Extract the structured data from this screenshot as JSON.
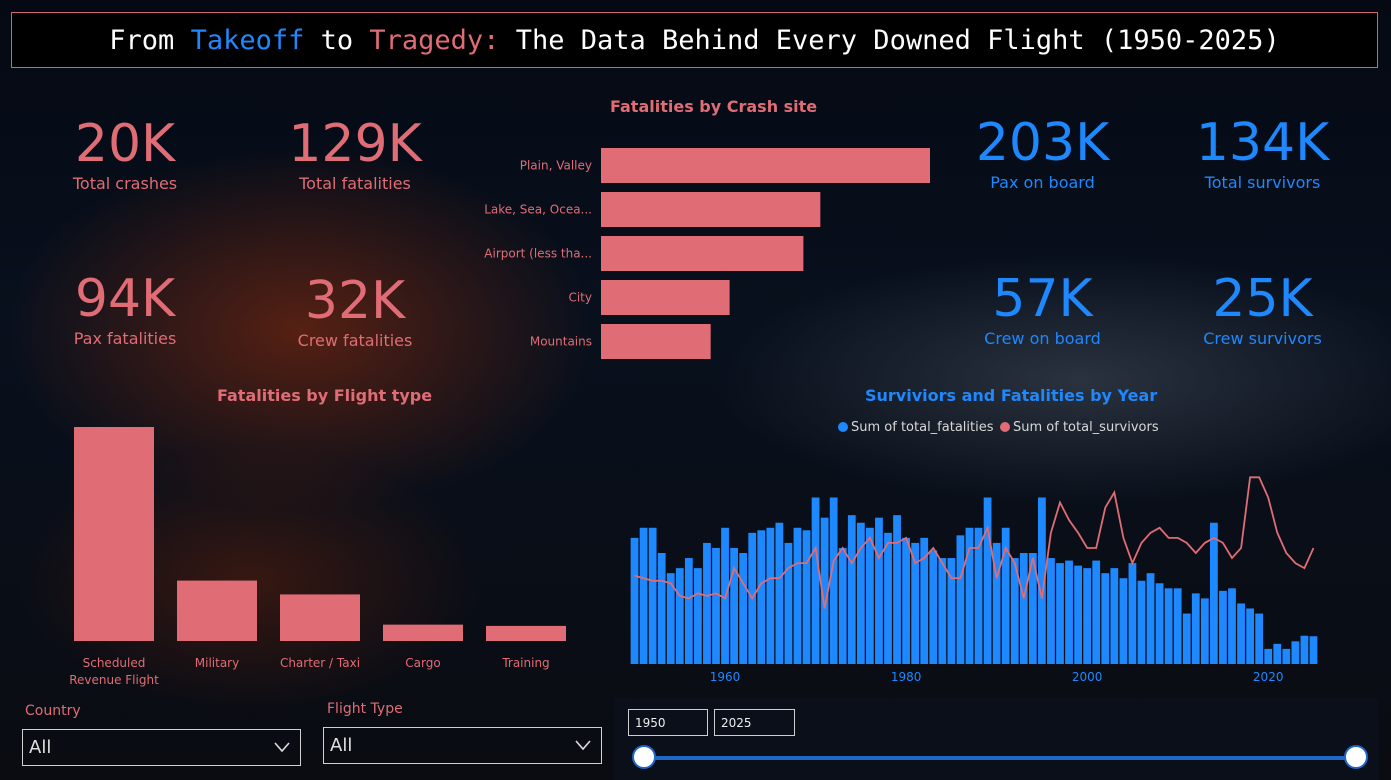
{
  "title": {
    "parts": [
      {
        "text": "From ",
        "color": "#ffffff"
      },
      {
        "text": "Takeoff",
        "color": "#1e88ff"
      },
      {
        "text": " to ",
        "color": "#ffffff"
      },
      {
        "text": "Tragedy:",
        "color": "#e06c75"
      },
      {
        "text": " The Data Behind Every Downed Flight (1950-2025)",
        "color": "#ffffff"
      }
    ]
  },
  "kpis": {
    "total_crashes": {
      "value": "20K",
      "label": "Total crashes"
    },
    "total_fatalities": {
      "value": "129K",
      "label": "Total fatalities"
    },
    "pax_fatalities": {
      "value": "94K",
      "label": "Pax fatalities"
    },
    "crew_fatalities": {
      "value": "32K",
      "label": "Crew fatalities"
    },
    "pax_on_board": {
      "value": "203K",
      "label": "Pax on board"
    },
    "total_survivors": {
      "value": "134K",
      "label": "Total survivors"
    },
    "crew_on_board": {
      "value": "57K",
      "label": "Crew on board"
    },
    "crew_survivors": {
      "value": "25K",
      "label": "Crew survivors"
    }
  },
  "colors": {
    "red": "#e06c75",
    "blue": "#1e88ff",
    "line": "#e06c75"
  },
  "chart_data": [
    {
      "type": "bar",
      "orientation": "horizontal",
      "title": "Fatalities by Crash site",
      "categories": [
        "Plain, Valley",
        "Lake, Sea, Ocea...",
        "Airport (less tha...",
        "City",
        "Mountains"
      ],
      "values": [
        33000,
        22000,
        20300,
        12900,
        11000
      ]
    },
    {
      "type": "bar",
      "title": "Fatalities by Flight type",
      "categories": [
        "Scheduled Revenue Flight",
        "Military",
        "Charter / Taxi",
        "Cargo",
        "Training"
      ],
      "category_lines": [
        [
          "Scheduled",
          "Revenue Flight"
        ],
        [
          "Military"
        ],
        [
          "Charter / Taxi"
        ],
        [
          "Cargo"
        ],
        [
          "Training"
        ]
      ],
      "values": [
        85000,
        24000,
        18500,
        6500,
        6000
      ]
    },
    {
      "type": "bar+line",
      "title": "Surviviors and Fatalities by Year",
      "legend": [
        "Sum of total_fatalities",
        "Sum of total_survivors"
      ],
      "legend_position": "top",
      "x_ticks": [
        1960,
        1980,
        2000,
        2020
      ],
      "x_range": [
        1950,
        2025
      ],
      "y_range": [
        0,
        4400
      ],
      "grid": false,
      "x": [
        1950,
        1951,
        1952,
        1953,
        1954,
        1955,
        1956,
        1957,
        1958,
        1959,
        1960,
        1961,
        1962,
        1963,
        1964,
        1965,
        1966,
        1967,
        1968,
        1969,
        1970,
        1971,
        1972,
        1973,
        1974,
        1975,
        1976,
        1977,
        1978,
        1979,
        1980,
        1981,
        1982,
        1983,
        1984,
        1985,
        1986,
        1987,
        1988,
        1989,
        1990,
        1991,
        1992,
        1993,
        1994,
        1995,
        1996,
        1997,
        1998,
        1999,
        2000,
        2001,
        2002,
        2003,
        2004,
        2005,
        2006,
        2007,
        2008,
        2009,
        2010,
        2011,
        2012,
        2013,
        2014,
        2015,
        2016,
        2017,
        2018,
        2019,
        2020,
        2021,
        2022,
        2023,
        2024,
        2025
      ],
      "series": [
        {
          "name": "Sum of total_fatalities",
          "type": "bar",
          "values": [
            2500,
            2700,
            2700,
            2200,
            1800,
            1900,
            2100,
            1900,
            2400,
            2300,
            2700,
            2300,
            2200,
            2600,
            2650,
            2700,
            2800,
            2400,
            2700,
            2650,
            3300,
            2900,
            3300,
            2300,
            2950,
            2800,
            2700,
            2900,
            2600,
            2950,
            2500,
            2400,
            2500,
            2250,
            2100,
            2100,
            2550,
            2700,
            2700,
            3300,
            2400,
            2700,
            2100,
            2200,
            2200,
            3300,
            2100,
            2000,
            2050,
            1950,
            1900,
            2050,
            1800,
            1900,
            1700,
            2000,
            1650,
            1800,
            1600,
            1500,
            1500,
            1000,
            1400,
            1300,
            2800,
            1450,
            1500,
            1200,
            1100,
            1000,
            300,
            400,
            300,
            450,
            560,
            550
          ]
        },
        {
          "name": "Sum of total_survivors",
          "type": "line",
          "values": [
            1750,
            1700,
            1650,
            1650,
            1600,
            1350,
            1300,
            1400,
            1350,
            1400,
            1300,
            1900,
            1600,
            1300,
            1600,
            1700,
            1700,
            1900,
            2000,
            2000,
            2300,
            1100,
            2050,
            2300,
            2000,
            2300,
            2500,
            2100,
            2400,
            2400,
            2500,
            2000,
            2100,
            2300,
            2000,
            1700,
            1700,
            2300,
            2300,
            2700,
            1700,
            2300,
            2000,
            1300,
            2100,
            1300,
            2600,
            3200,
            2850,
            2600,
            2300,
            2300,
            3100,
            3400,
            2500,
            2000,
            2400,
            2600,
            2700,
            2500,
            2500,
            2400,
            2200,
            2400,
            2500,
            2400,
            2100,
            2300,
            3700,
            3700,
            3300,
            2600,
            2200,
            2000,
            1900,
            2300
          ]
        }
      ]
    }
  ],
  "filters": {
    "country": {
      "label": "Country",
      "value": "All"
    },
    "flight_type": {
      "label": "Flight Type",
      "value": "All"
    }
  },
  "range": {
    "from": "1950",
    "to": "2025",
    "min": 1950,
    "max": 2025
  }
}
